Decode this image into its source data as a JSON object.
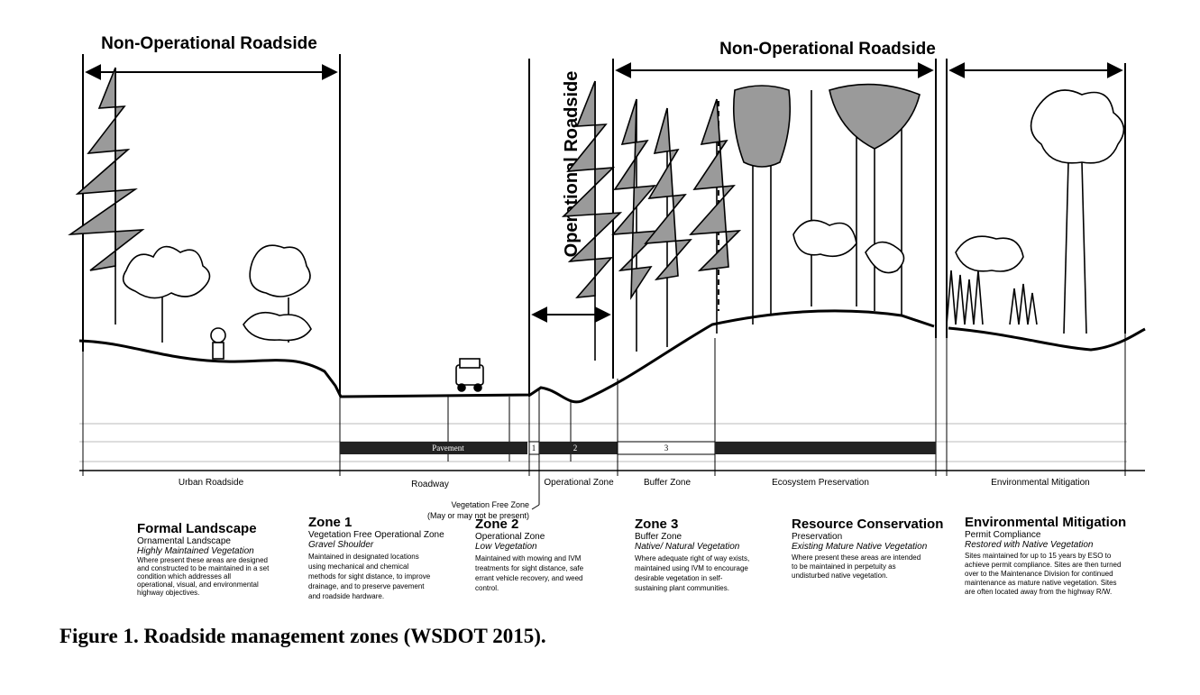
{
  "headers": {
    "non_op_left": "Non-Operational Roadside",
    "non_op_right": "Non-Operational Roadside",
    "operational": "Operational Roadside"
  },
  "bar": {
    "pavement": "Pavement",
    "zone1": "1",
    "zone2": "2",
    "zone3": "3"
  },
  "zone_labels": {
    "urban_roadside": "Urban Roadside",
    "roadway": "Roadway",
    "operational_zone": "Operational Zone",
    "buffer_zone": "Buffer Zone",
    "ecosystem_preservation": "Ecosystem Preservation",
    "environmental_mitigation": "Environmental Mitigation"
  },
  "vegetation_free": {
    "line1": "Vegetation Free Zone",
    "line2": "(May or may not be present)"
  },
  "descriptions": {
    "formal": {
      "title": "Formal Landscape",
      "sub": "Ornamental Landscape",
      "ital": "Highly Maintained Vegetation",
      "lines": [
        "Where present these areas are designed",
        "and constructed to be maintained in a set",
        "condition which addresses all",
        "operational, visual, and environmental",
        "highway objectives."
      ]
    },
    "zone1": {
      "title": "Zone 1",
      "sub": "Vegetation Free Operational Zone",
      "ital": "Gravel Shoulder",
      "lines": [
        "Maintained in designated locations",
        "using mechanical and chemical",
        "methods for sight distance, to improve",
        "drainage, and to preserve pavement",
        "and roadside hardware."
      ]
    },
    "zone2": {
      "title": "Zone 2",
      "sub": "Operational Zone",
      "ital": "Low Vegetation",
      "lines": [
        "Maintained with mowing and IVM",
        "treatments for sight distance, safe",
        "errant vehicle recovery, and weed",
        "control."
      ]
    },
    "zone3": {
      "title": "Zone 3",
      "sub": "Buffer Zone",
      "ital": "Native/ Natural Vegetation",
      "lines": [
        "Where adequate right of way exists,",
        "maintained using IVM to encourage",
        "desirable vegetation in self-",
        "sustaining plant communities."
      ]
    },
    "resource": {
      "title": "Resource Conservation",
      "sub": "Preservation",
      "ital": "Existing Mature Native Vegetation",
      "lines": [
        "Where present these areas are intended",
        "to be maintained in perpetuity as",
        "undisturbed native vegetation."
      ]
    },
    "envmit": {
      "title": "Environmental Mitigation",
      "sub": "Permit Compliance",
      "ital": "Restored with Native Vegetation",
      "lines": [
        "Sites maintained for up to 15 years by ESO to",
        "achieve permit compliance. Sites are then turned",
        "over to the Maintenance Division for continued",
        "maintenance as mature native vegetation. Sites",
        "are often located away from the highway R/W."
      ]
    }
  },
  "caption": "Figure 1. Roadside management zones (WSDOT 2015)."
}
